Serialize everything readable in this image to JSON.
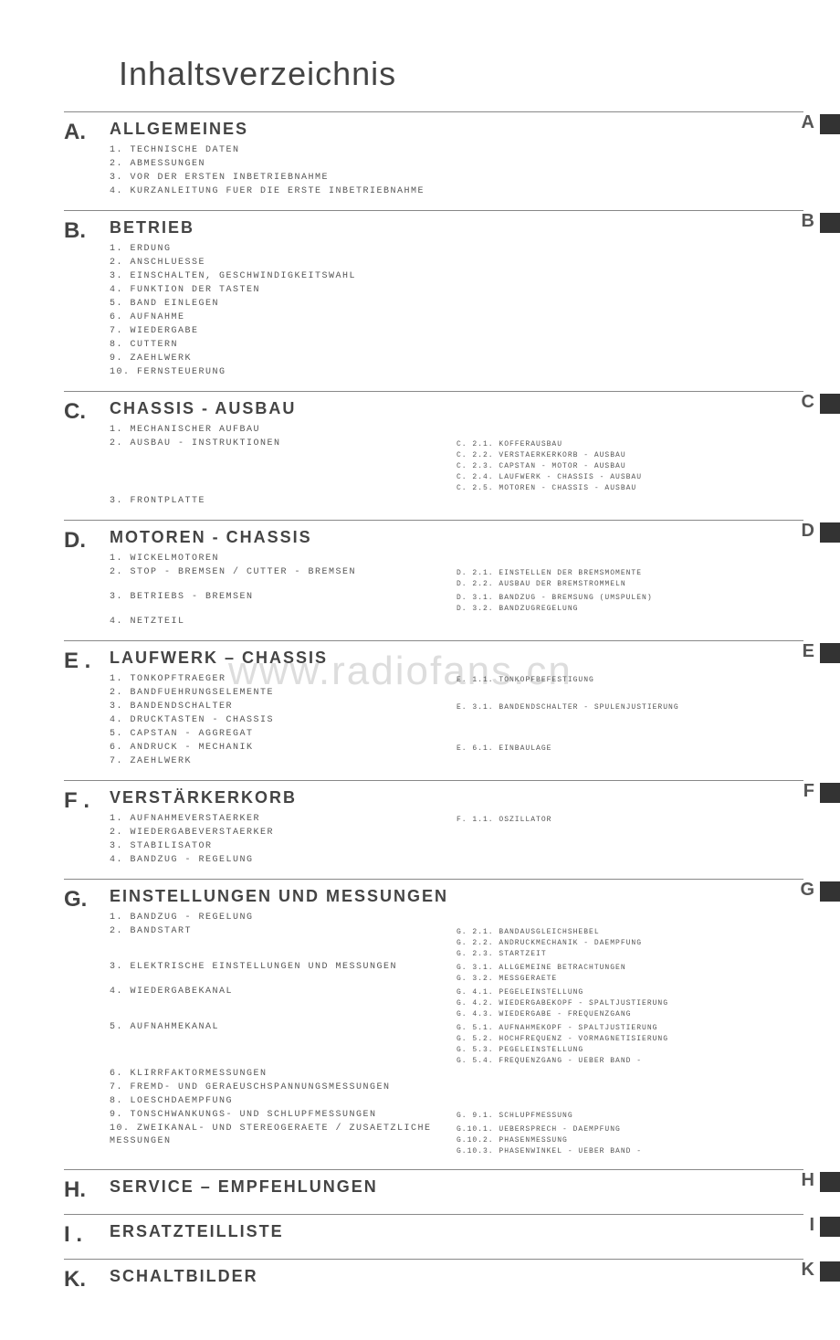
{
  "title": "Inhaltsverzeichnis",
  "watermark": "www.radiofans.cn",
  "sections": [
    {
      "letter": "A.",
      "tab": "A",
      "heading": "ALLGEMEINES",
      "items": [
        {
          "n": "1.",
          "t": "TECHNISCHE DATEN"
        },
        {
          "n": "2.",
          "t": "ABMESSUNGEN"
        },
        {
          "n": "3.",
          "t": "VOR DER ERSTEN INBETRIEBNAHME"
        },
        {
          "n": "4.",
          "t": "KURZANLEITUNG FUER DIE ERSTE INBETRIEBNAHME"
        }
      ]
    },
    {
      "letter": "B.",
      "tab": "B",
      "heading": "BETRIEB",
      "items": [
        {
          "n": "1.",
          "t": "ERDUNG"
        },
        {
          "n": "2.",
          "t": "ANSCHLUESSE"
        },
        {
          "n": "3.",
          "t": "EINSCHALTEN, GESCHWINDIGKEITSWAHL"
        },
        {
          "n": "4.",
          "t": "FUNKTION DER TASTEN"
        },
        {
          "n": "5.",
          "t": "BAND EINLEGEN"
        },
        {
          "n": "6.",
          "t": "AUFNAHME"
        },
        {
          "n": "7.",
          "t": "WIEDERGABE"
        },
        {
          "n": "8.",
          "t": "CUTTERN"
        },
        {
          "n": "9.",
          "t": "ZAEHLWERK"
        },
        {
          "n": "10.",
          "t": "FERNSTEUERUNG"
        }
      ]
    },
    {
      "letter": "C.",
      "tab": "C",
      "heading": "CHASSIS - AUSBAU",
      "items": [
        {
          "n": "1.",
          "t": "MECHANISCHER AUFBAU"
        },
        {
          "n": "2.",
          "t": "AUSBAU - INSTRUKTIONEN",
          "subs": [
            "C. 2.1. KOFFERAUSBAU",
            "C. 2.2. VERSTAERKERKORB - AUSBAU",
            "C. 2.3. CAPSTAN - MOTOR - AUSBAU",
            "C. 2.4. LAUFWERK - CHASSIS - AUSBAU",
            "C. 2.5. MOTOREN - CHASSIS - AUSBAU"
          ]
        },
        {
          "n": "3.",
          "t": "FRONTPLATTE"
        }
      ]
    },
    {
      "letter": "D.",
      "tab": "D",
      "heading": "MOTOREN - CHASSIS",
      "items": [
        {
          "n": "1.",
          "t": "WICKELMOTOREN"
        },
        {
          "n": "2.",
          "t": "STOP - BREMSEN / CUTTER - BREMSEN",
          "subs": [
            "D. 2.1. EINSTELLEN DER BREMSMOMENTE",
            "D. 2.2. AUSBAU DER BREMSTROMMELN"
          ]
        },
        {
          "n": "3.",
          "t": "BETRIEBS - BREMSEN",
          "subs": [
            "D. 3.1. BANDZUG - BREMSUNG (UMSPULEN)",
            "D. 3.2. BANDZUGREGELUNG"
          ]
        },
        {
          "n": "4.",
          "t": "NETZTEIL"
        }
      ]
    },
    {
      "letter": "E .",
      "tab": "E",
      "heading": "LAUFWERK – CHASSIS",
      "watermark": true,
      "items": [
        {
          "n": "1.",
          "t": "TONKOPFTRAEGER",
          "subs": [
            "E. 1.1. TONKOPFBEFESTIGUNG"
          ]
        },
        {
          "n": "2.",
          "t": "BANDFUEHRUNGSELEMENTE"
        },
        {
          "n": "3.",
          "t": "BANDENDSCHALTER",
          "subs": [
            "E. 3.1. BANDENDSCHALTER - SPULENJUSTIERUNG"
          ]
        },
        {
          "n": "4.",
          "t": "DRUCKTASTEN - CHASSIS"
        },
        {
          "n": "5.",
          "t": "CAPSTAN - AGGREGAT"
        },
        {
          "n": "6.",
          "t": "ANDRUCK - MECHANIK",
          "subs": [
            "E. 6.1. EINBAULAGE"
          ]
        },
        {
          "n": "7.",
          "t": "ZAEHLWERK"
        }
      ]
    },
    {
      "letter": "F .",
      "tab": "F",
      "heading": "VERSTÄRKERKORB",
      "items": [
        {
          "n": "1.",
          "t": "AUFNAHMEVERSTAERKER",
          "subs": [
            "F. 1.1. OSZILLATOR"
          ]
        },
        {
          "n": "2.",
          "t": "WIEDERGABEVERSTAERKER"
        },
        {
          "n": "3.",
          "t": "STABILISATOR"
        },
        {
          "n": "4.",
          "t": "BANDZUG - REGELUNG"
        }
      ]
    },
    {
      "letter": "G.",
      "tab": "G",
      "heading": "EINSTELLUNGEN UND MESSUNGEN",
      "items": [
        {
          "n": "1.",
          "t": "BANDZUG - REGELUNG"
        },
        {
          "n": "2.",
          "t": "BANDSTART",
          "subs": [
            "G. 2.1. BANDAUSGLEICHSHEBEL",
            "G. 2.2. ANDRUCKMECHANIK - DAEMPFUNG",
            "G. 2.3. STARTZEIT"
          ]
        },
        {
          "n": "3.",
          "t": "ELEKTRISCHE EINSTELLUNGEN UND MESSUNGEN",
          "subs": [
            "G. 3.1. ALLGEMEINE BETRACHTUNGEN",
            "G. 3.2. MESSGERAETE"
          ]
        },
        {
          "n": "4.",
          "t": "WIEDERGABEKANAL",
          "subs": [
            "G. 4.1. PEGELEINSTELLUNG",
            "G. 4.2. WIEDERGABEKOPF - SPALTJUSTIERUNG",
            "G. 4.3. WIEDERGABE - FREQUENZGANG"
          ]
        },
        {
          "n": "5.",
          "t": "AUFNAHMEKANAL",
          "subs": [
            "G. 5.1. AUFNAHMEKOPF - SPALTJUSTIERUNG",
            "G. 5.2. HOCHFREQUENZ - VORMAGNETISIERUNG",
            "G. 5.3. PEGELEINSTELLUNG",
            "G. 5.4. FREQUENZGANG - UEBER BAND -"
          ]
        },
        {
          "n": "6.",
          "t": "KLIRRFAKTORMESSUNGEN"
        },
        {
          "n": "7.",
          "t": "FREMD- UND GERAEUSCHSPANNUNGSMESSUNGEN"
        },
        {
          "n": "8.",
          "t": "LOESCHDAEMPFUNG"
        },
        {
          "n": "9.",
          "t": "TONSCHWANKUNGS- UND SCHLUPFMESSUNGEN",
          "subs": [
            "G. 9.1. SCHLUPFMESSUNG"
          ]
        },
        {
          "n": "10.",
          "t": "ZWEIKANAL- UND STEREOGERAETE / ZUSAETZLICHE MESSUNGEN",
          "subs": [
            "G.10.1. UEBERSPRECH - DAEMPFUNG",
            "G.10.2. PHASENMESSUNG",
            "G.10.3. PHASENWINKEL - UEBER BAND -"
          ]
        }
      ]
    },
    {
      "letter": "H.",
      "tab": "H",
      "heading": "SERVICE – EMPFEHLUNGEN",
      "items": []
    },
    {
      "letter": "I .",
      "tab": "I",
      "heading": "ERSATZTEILLISTE",
      "items": []
    },
    {
      "letter": "K.",
      "tab": "K",
      "heading": "SCHALTBILDER",
      "items": []
    }
  ]
}
